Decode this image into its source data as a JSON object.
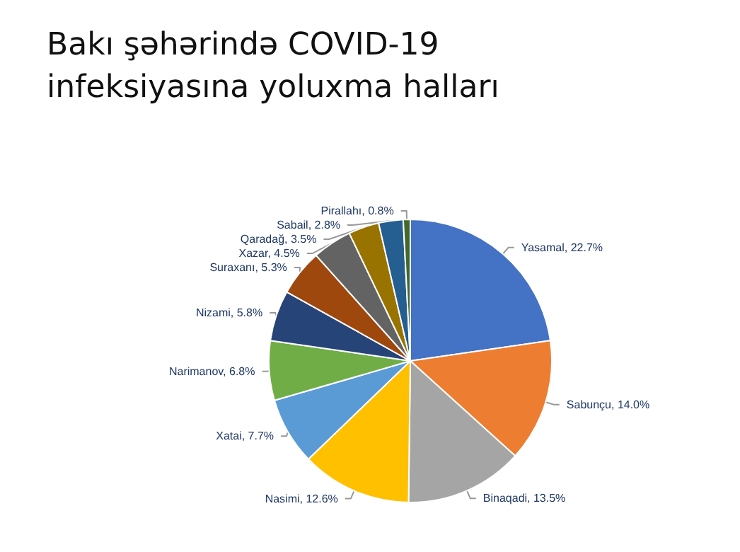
{
  "chart_data": {
    "type": "pie",
    "title": "Bakı şəhərində COVID-19 infeksiyasına yoluxma halları",
    "categories": [
      "Yasamal",
      "Sabunçu",
      "Binaqadi",
      "Nasimi",
      "Xatai",
      "Narimanov",
      "Nizami",
      "Suraxanı",
      "Xazar",
      "Qaradağ",
      "Sabail",
      "Pirallahı"
    ],
    "values": [
      22.7,
      14.0,
      13.5,
      12.6,
      7.7,
      6.8,
      5.8,
      5.3,
      4.5,
      3.5,
      2.8,
      0.8
    ],
    "value_labels": [
      "22.7%",
      "14.0%",
      "13.5%",
      "12.6%",
      "7.7%",
      "6.8%",
      "5.8%",
      "5.3%",
      "4.5%",
      "3.5%",
      "2.8%",
      "0.8%"
    ],
    "colors": [
      "#4472c4",
      "#ed7d31",
      "#a5a5a5",
      "#ffc000",
      "#5b9bd5",
      "#70ad47",
      "#264478",
      "#9e480e",
      "#636363",
      "#997300",
      "#255e91",
      "#43682b"
    ],
    "legend": false
  }
}
